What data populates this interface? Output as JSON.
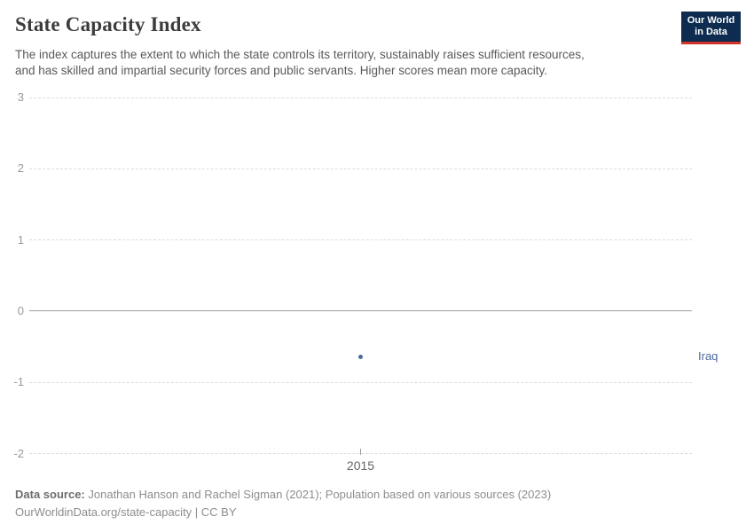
{
  "header": {
    "title": "State Capacity Index",
    "subtitle_line1": "The index captures the extent to which the state controls its territory, sustainably raises sufficient resources,",
    "subtitle_line2": "and has skilled and impartial security forces and public servants. Higher scores mean more capacity.",
    "logo_line1": "Our World",
    "logo_line2": "in Data"
  },
  "chart_data": {
    "type": "scatter",
    "title": "State Capacity Index",
    "x": [
      2015
    ],
    "xtick_labels": [
      "2015"
    ],
    "series": [
      {
        "name": "Iraq",
        "values": [
          -0.64
        ],
        "color": "#4c6a9c"
      }
    ],
    "ylim": [
      -2,
      3
    ],
    "yticks": [
      3,
      2,
      1,
      0,
      -1,
      -2
    ],
    "grid": "horizontal-dashed",
    "zero_line": "solid",
    "legend_position": "entity-label-right"
  },
  "colors": {
    "accent_blue": "#4c6a9c",
    "logo_bg": "#0d2c50",
    "logo_stripe": "#d0342c",
    "gridline": "#dcdcdc",
    "zero_line": "#9e9e9e"
  },
  "footer": {
    "source_label": "Data source:",
    "source_text": "Jonathan Hanson and Rachel Sigman (2021); Population based on various sources (2023)",
    "license_line": "OurWorldinData.org/state-capacity | CC BY"
  }
}
